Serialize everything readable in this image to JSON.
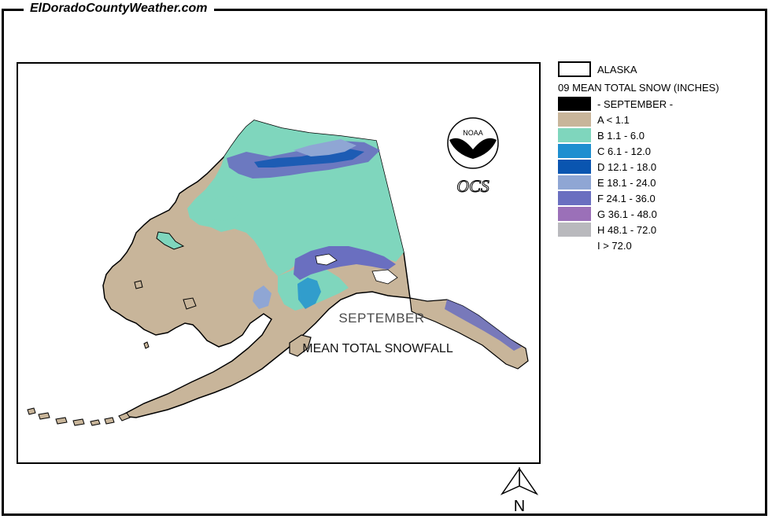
{
  "site_title": "ElDoradoCountyWeather.com",
  "map": {
    "title_month": "SEPTEMBER",
    "title_main": "MEAN TOTAL SNOWFALL",
    "logo_text": "NOAA",
    "logo_subtext": "OCS",
    "north_label": "N"
  },
  "legend": {
    "region_label": "ALASKA",
    "heading": "09 MEAN TOTAL SNOW (INCHES)",
    "items": [
      {
        "label": "- SEPTEMBER -",
        "color": "#000000"
      },
      {
        "label": "A < 1.1",
        "color": "#c8b59a"
      },
      {
        "label": "B 1.1 - 6.0",
        "color": "#7fd6bd"
      },
      {
        "label": "C 6.1 - 12.0",
        "color": "#1e8fd0"
      },
      {
        "label": "D 12.1 - 18.0",
        "color": "#0a55b0"
      },
      {
        "label": "E 18.1 - 24.0",
        "color": "#8fa6d4"
      },
      {
        "label": "F 24.1 - 36.0",
        "color": "#6a6fc0"
      },
      {
        "label": "G 36.1 - 48.0",
        "color": "#9b70b8"
      },
      {
        "label": "H 48.1 - 72.0",
        "color": "#b9b9bd"
      },
      {
        "label": "I > 72.0",
        "color": "#ffffff"
      }
    ]
  }
}
